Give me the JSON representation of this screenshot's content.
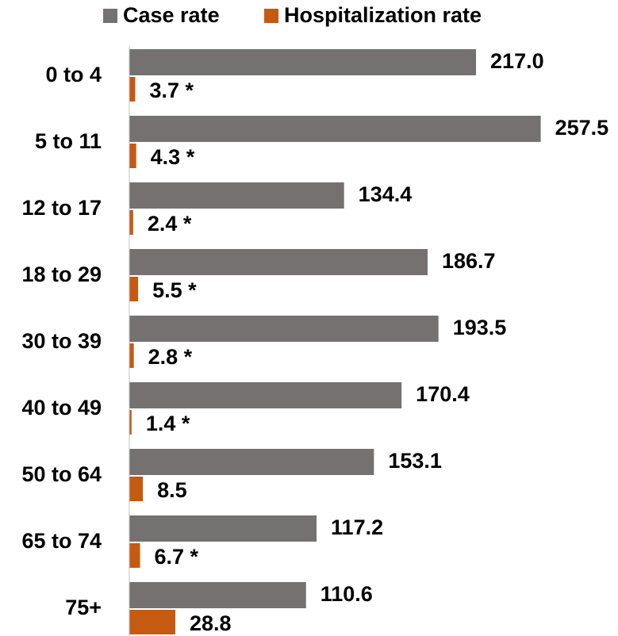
{
  "chart_data": {
    "type": "bar",
    "orientation": "horizontal",
    "categories": [
      "0 to 4",
      "5 to 11",
      "12 to 17",
      "18 to 29",
      "30 to 39",
      "40 to 49",
      "50 to 64",
      "65 to 74",
      "75+"
    ],
    "series": [
      {
        "name": "Case rate",
        "color": "#757171",
        "values": [
          217.0,
          257.5,
          134.4,
          186.7,
          193.5,
          170.4,
          153.1,
          117.2,
          110.6
        ],
        "value_labels": [
          "217.0",
          "257.5",
          "134.4",
          "186.7",
          "193.5",
          "170.4",
          "153.1",
          "117.2",
          "110.6"
        ]
      },
      {
        "name": "Hospitalization rate",
        "color": "#c55a11",
        "values": [
          3.7,
          4.3,
          2.4,
          5.5,
          2.8,
          1.4,
          8.5,
          6.7,
          28.8
        ],
        "value_labels": [
          "3.7 *",
          "4.3 *",
          "2.4 *",
          "5.5 *",
          "2.8 *",
          "1.4 *",
          "8.5",
          "6.7 *",
          "28.8"
        ]
      }
    ],
    "legend": "top"
  }
}
